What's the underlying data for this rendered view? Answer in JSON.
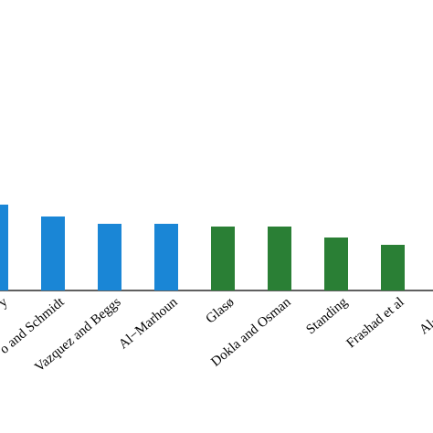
{
  "chart_data": {
    "type": "bar",
    "categories": [
      "y",
      "o and Schmidt",
      "Vazquez and Beggs",
      "Al−Marhoun",
      "Glasø",
      "Dokla and Osman",
      "Standing",
      "Frashad et al",
      "Al−Shan"
    ],
    "values": [
      94,
      81,
      73,
      73,
      70,
      70,
      58,
      50,
      null
    ],
    "colors": [
      "#1a86d6",
      "#1a86d6",
      "#1a86d6",
      "#1a86d6",
      "#2a7f35",
      "#2a7f35",
      "#2a7f35",
      "#2a7f35",
      "#2a7f35"
    ],
    "ylim": [
      0,
      100
    ]
  }
}
